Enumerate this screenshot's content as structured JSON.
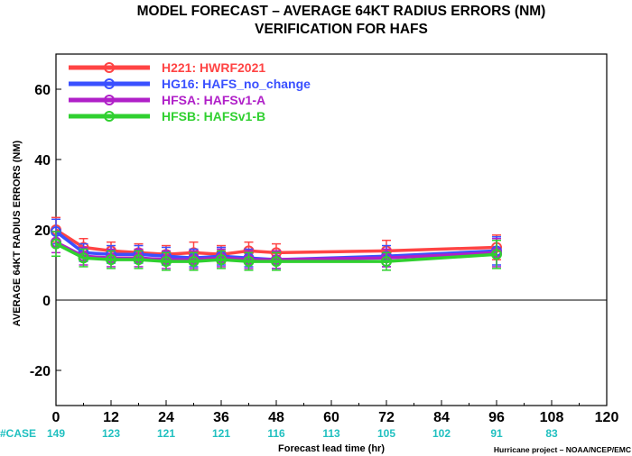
{
  "chart_data": {
    "type": "line",
    "title": "MODEL FORECAST – AVERAGE 64KT RADIUS ERRORS (NM)",
    "subtitle": "VERIFICATION FOR HAFS",
    "xlabel": "Forecast lead time (hr)",
    "ylabel": "AVERAGE 64KT RADIUS ERRORS (NM)",
    "xlim": [
      0,
      120
    ],
    "ylim": [
      -30,
      70
    ],
    "x_ticks": [
      0,
      12,
      24,
      36,
      48,
      60,
      72,
      84,
      96,
      108,
      120
    ],
    "y_ticks": [
      -20,
      0,
      20,
      40,
      60
    ],
    "zero_line": true,
    "grid": false,
    "legend_position": "top-left",
    "case_label": "#CASE",
    "case_counts": [
      {
        "x": 0,
        "label": "149"
      },
      {
        "x": 12,
        "label": "123"
      },
      {
        "x": 24,
        "label": "121"
      },
      {
        "x": 36,
        "label": "121"
      },
      {
        "x": 48,
        "label": "116"
      },
      {
        "x": 60,
        "label": "113"
      },
      {
        "x": 72,
        "label": "105"
      },
      {
        "x": 84,
        "label": "102"
      },
      {
        "x": 96,
        "label": "91"
      },
      {
        "x": 108,
        "label": "83"
      }
    ],
    "case_color": "#20c0c0",
    "credit": "Hurricane project – NOAA/NCEP/EMC",
    "series": [
      {
        "name": "H221: HWRF2021",
        "color": "#ff4444",
        "x": [
          0,
          6,
          12,
          18,
          24,
          30,
          36,
          42,
          48,
          72,
          96
        ],
        "y": [
          20,
          15,
          14,
          13.5,
          13,
          13.5,
          13,
          14,
          13.5,
          14,
          15
        ],
        "err": [
          3.5,
          2.5,
          2.5,
          2.5,
          2.5,
          3,
          2.5,
          2.5,
          2.5,
          3,
          3.5
        ]
      },
      {
        "name": "HG16: HAFS_no_change",
        "color": "#3a50ff",
        "x": [
          0,
          6,
          12,
          18,
          24,
          30,
          36,
          42,
          48,
          72,
          96
        ],
        "y": [
          19.5,
          13.5,
          13,
          13,
          12.5,
          12,
          12.5,
          12,
          11.5,
          12.5,
          14
        ],
        "err": [
          3.5,
          2.5,
          2.5,
          2.5,
          2.5,
          2.5,
          2.5,
          2.5,
          2.5,
          3,
          4
        ]
      },
      {
        "name": "HFSA: HAFSv1-A",
        "color": "#b020c8",
        "x": [
          0,
          6,
          12,
          18,
          24,
          30,
          36,
          42,
          48,
          72,
          96
        ],
        "y": [
          16.5,
          12.5,
          12,
          12,
          11.5,
          11.5,
          12,
          11.5,
          11.5,
          12,
          13.5
        ],
        "err": [
          3,
          2.5,
          2.5,
          2.5,
          2.5,
          2.5,
          2.5,
          2.5,
          2.5,
          2.5,
          4
        ]
      },
      {
        "name": "HFSB: HAFSv1-B",
        "color": "#30d030",
        "x": [
          0,
          6,
          12,
          18,
          24,
          30,
          36,
          42,
          48,
          72,
          96
        ],
        "y": [
          16,
          12,
          11.5,
          11.5,
          11,
          11,
          11.5,
          11,
          11,
          11,
          13
        ],
        "err": [
          3.5,
          2.5,
          2.5,
          2.5,
          2.5,
          2.5,
          2.5,
          2.5,
          2.5,
          2.5,
          4
        ]
      }
    ]
  }
}
